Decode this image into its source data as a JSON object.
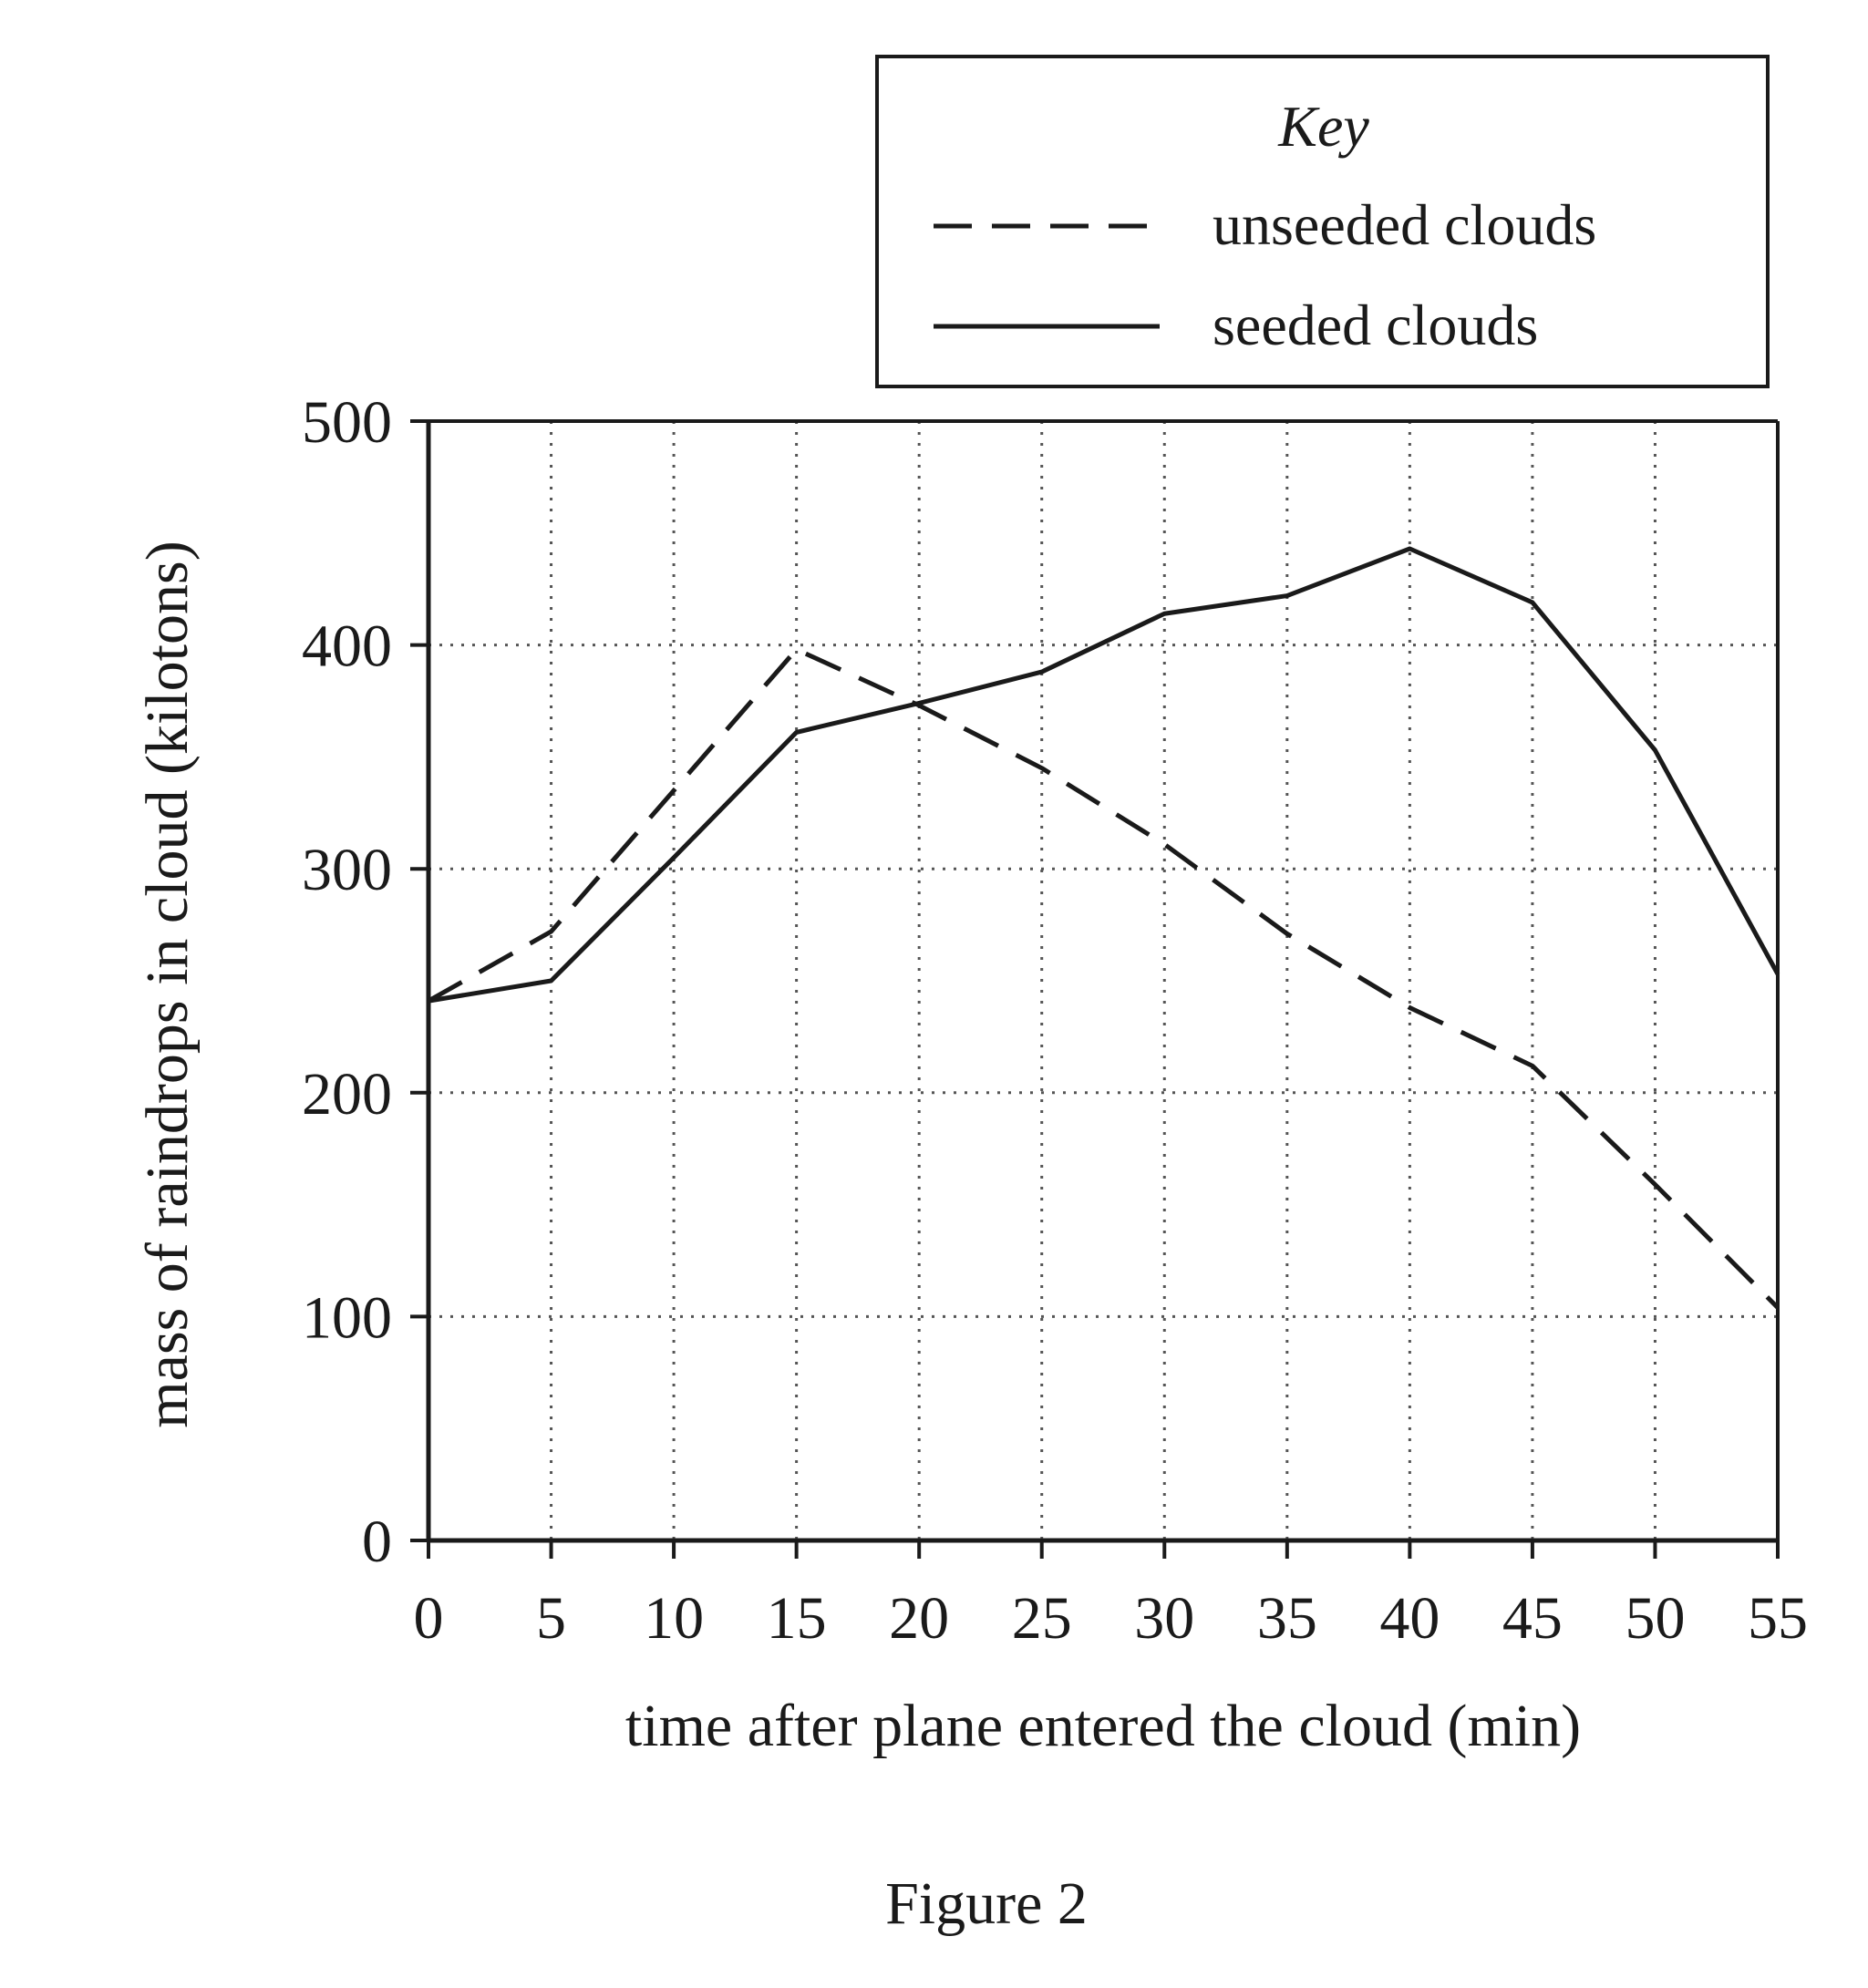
{
  "chart_data": {
    "type": "line",
    "title": "",
    "caption": "Figure 2",
    "xlabel": "time after plane entered the cloud (min)",
    "ylabel": "mass of raindrops in cloud (kilotons)",
    "xlim": [
      0,
      55
    ],
    "ylim": [
      0,
      500
    ],
    "x_ticks": [
      "0",
      "5",
      "10",
      "15",
      "20",
      "25",
      "30",
      "35",
      "40",
      "45",
      "50",
      "55"
    ],
    "y_ticks": [
      "0",
      "100",
      "200",
      "300",
      "400",
      "500"
    ],
    "grid": true,
    "legend": {
      "title": "Key",
      "placement": "top-right"
    },
    "series": [
      {
        "name": "unseeded clouds",
        "style": "dashed",
        "x": [
          0,
          5,
          10,
          15,
          20,
          25,
          30,
          35,
          40,
          45,
          50,
          55
        ],
        "y": [
          241,
          272,
          335,
          398,
          373,
          345,
          311,
          271,
          238,
          212,
          159,
          104
        ]
      },
      {
        "name": "seeded clouds",
        "style": "solid",
        "x": [
          0,
          5,
          10,
          15,
          20,
          25,
          30,
          35,
          40,
          45,
          50,
          55
        ],
        "y": [
          241,
          250,
          305,
          361,
          374,
          388,
          414,
          422,
          443,
          419,
          353,
          253
        ]
      }
    ]
  }
}
